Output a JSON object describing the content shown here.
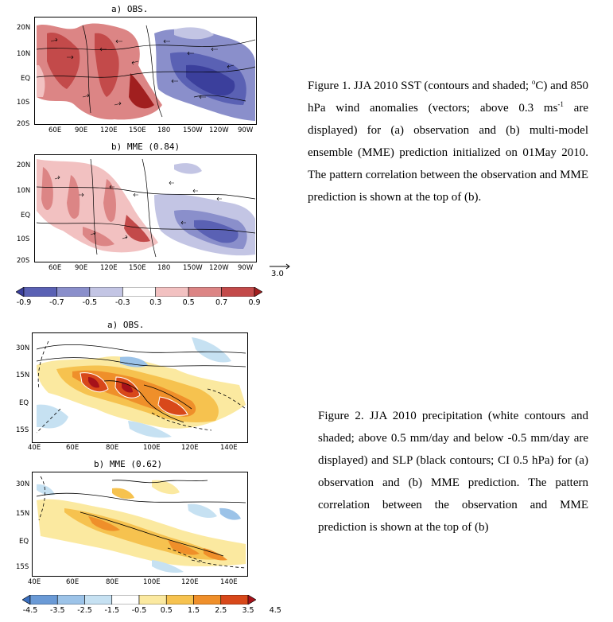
{
  "figure1": {
    "panel_a_title": "a) OBS.",
    "panel_b_title": "b) MME (0.84)",
    "lat_ticks": [
      "20N",
      "10N",
      "EQ",
      "10S",
      "20S"
    ],
    "lon_ticks": [
      "60E",
      "90E",
      "120E",
      "150E",
      "180",
      "150W",
      "120W",
      "90W"
    ],
    "vector_scale": "3.0",
    "colorbar_labels": [
      "-0.9",
      "-0.7",
      "-0.5",
      "-0.3",
      "0.3",
      "0.5",
      "0.7",
      "0.9"
    ],
    "colorbar_colors": [
      "#3b3f9c",
      "#5a61b4",
      "#8a8fcb",
      "#c3c5e4",
      "#ffffff",
      "#f2c1c1",
      "#dc8585",
      "#c34a4a",
      "#a11f1f"
    ],
    "caption": {
      "text1": "Figure 1. JJA 2010 SST (contours and shaded; ",
      "degree": "o",
      "text2": "C) and 850 hPa wind anomalies (vectors; above 0.3 ms",
      "exp": "-1",
      "text3": " are displayed) for (a) observation and (b) multi-model ensemble (MME) prediction initialized on 01May 2010. The pattern correlation between the observation and MME prediction is shown at the top of (b)."
    }
  },
  "figure2": {
    "panel_a_title": "a) OBS.",
    "panel_b_title": "b) MME (0.62)",
    "lat_ticks": [
      "30N",
      "15N",
      "EQ",
      "15S"
    ],
    "lon_ticks": [
      "40E",
      "60E",
      "80E",
      "100E",
      "120E",
      "140E"
    ],
    "colorbar_labels": [
      "-4.5",
      "-3.5",
      "-2.5",
      "-1.5",
      "-0.5",
      "0.5",
      "1.5",
      "2.5",
      "3.5",
      "4.5"
    ],
    "colorbar_colors": [
      "#3a6fbf",
      "#6a9ad6",
      "#9cc3e8",
      "#c6e1f2",
      "#ffffff",
      "#fbe9a0",
      "#f6c24f",
      "#ef8f2a",
      "#d8481a",
      "#a6121a"
    ],
    "caption": "Figure 2. JJA 2010 precipitation (white contours and shaded; above 0.5 mm/day and below -0.5 mm/day are displayed) and SLP (black contours; CI 0.5 hPa) for (a) observation and (b) MME prediction. The pattern correlation between the observation and MME prediction is shown at the top of (b)"
  }
}
